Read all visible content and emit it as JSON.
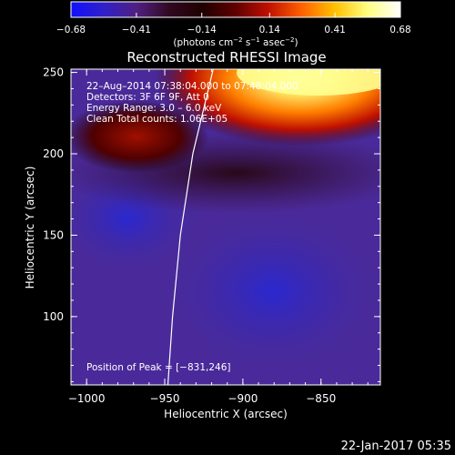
{
  "chart_data": {
    "type": "heatmap",
    "title": "Reconstructed RHESSI Image",
    "xlabel": "Heliocentric X (arcsec)",
    "ylabel": "Heliocentric Y (arcsec)",
    "xlim": [
      -1010,
      -812
    ],
    "ylim": [
      58,
      252
    ],
    "x_ticks": [
      -1000,
      -950,
      -900,
      -850
    ],
    "x_tick_labels": [
      "−1000",
      "−950",
      "−900",
      "−850"
    ],
    "y_ticks": [
      100,
      150,
      200,
      250
    ],
    "y_tick_labels": [
      "100",
      "150",
      "200",
      "250"
    ],
    "colorbar": {
      "min": -0.68,
      "max": 0.68,
      "ticks": [
        -0.68,
        -0.41,
        -0.14,
        0.14,
        0.41,
        0.68
      ],
      "tick_labels": [
        "−0.68",
        "−0.41",
        "−0.14",
        "0.14",
        "0.41",
        "0.68"
      ],
      "unit_label": "(photons cm",
      "unit_exp1": "−2",
      "unit_mid": " s",
      "unit_exp2": "−1",
      "unit_mid2": " asec",
      "unit_exp3": "−2",
      "unit_end": ")",
      "colors": [
        "#1010ff",
        "#3020c8",
        "#502080",
        "#300820",
        "#200000",
        "#600000",
        "#c01000",
        "#ff6000",
        "#ffc000",
        "#ffff80",
        "#ffffff"
      ]
    },
    "annotations": [
      "22–Aug–2014 07:38:04.000 to 07:48:04.000",
      "Detectors: 3F 6F 9F, Att 0",
      "Energy Range: 3.0 – 6.0 keV",
      "Clean    Total counts: 1.06E+05"
    ],
    "peak_label": "Position of Peak = [−831,246]",
    "limb_curve": [
      [
        -948,
        58
      ],
      [
        -945,
        100
      ],
      [
        -940,
        150
      ],
      [
        -932,
        200
      ],
      [
        -919,
        252
      ]
    ]
  },
  "footer_date": "22-Jan-2017 05:35"
}
